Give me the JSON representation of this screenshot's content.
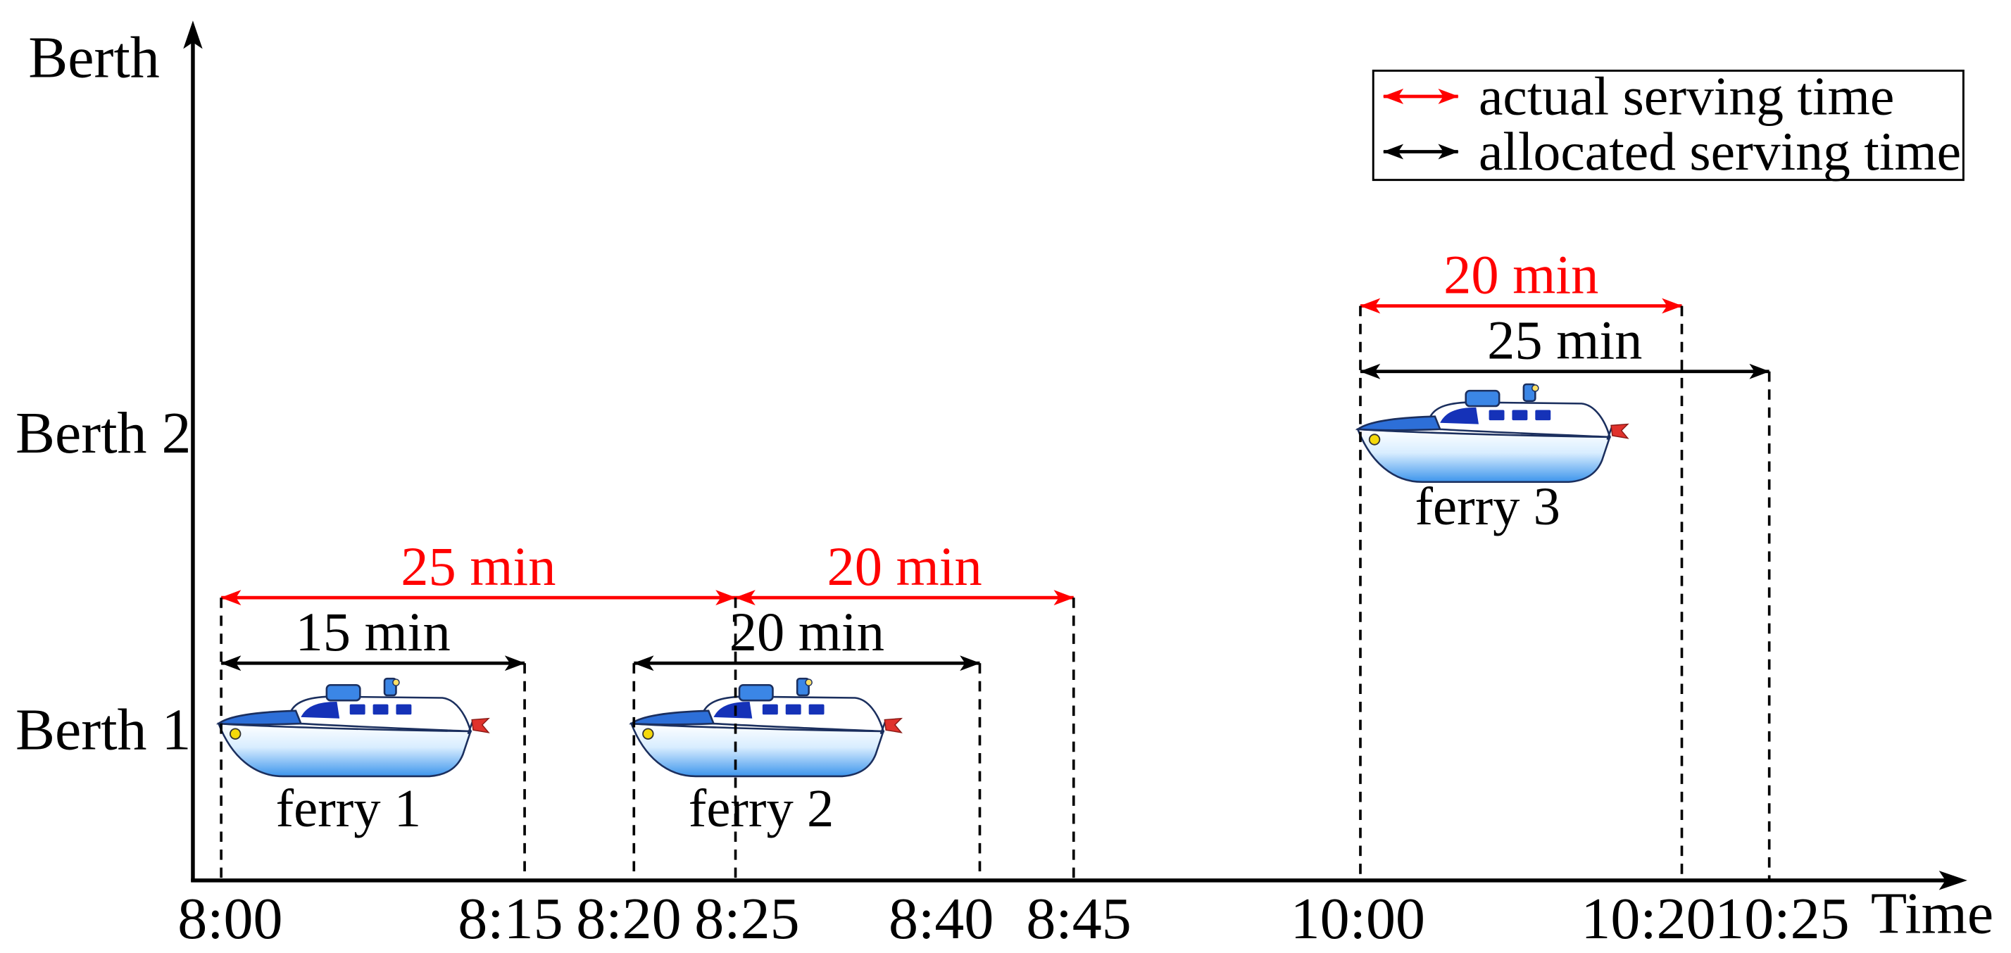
{
  "axes": {
    "y_label": "Berth",
    "x_label": "Time",
    "berths": [
      "Berth 1",
      "Berth 2"
    ],
    "time_ticks": [
      "8:00",
      "8:15",
      "8:20",
      "8:25",
      "8:40",
      "8:45",
      "10:00",
      "10:20",
      "10:25"
    ]
  },
  "legend": {
    "actual": {
      "label": "actual serving time",
      "color": "#ff0000",
      "icon": "double-arrow-icon"
    },
    "allocated": {
      "label": "allocated serving time",
      "color": "#000000",
      "icon": "double-arrow-icon"
    }
  },
  "ferries": [
    {
      "name": "ferry 1",
      "icon": "ferry-icon",
      "berth": "Berth 1",
      "actual": {
        "start": "8:00",
        "end": "8:25",
        "duration": "25 min"
      },
      "allocated": {
        "start": "8:00",
        "end": "8:15",
        "duration": "15 min"
      }
    },
    {
      "name": "ferry 2",
      "icon": "ferry-icon",
      "berth": "Berth 1",
      "actual": {
        "start": "8:25",
        "end": "8:45",
        "duration": "20 min"
      },
      "allocated": {
        "start": "8:20",
        "end": "8:40",
        "duration": "20 min"
      }
    },
    {
      "name": "ferry 3",
      "icon": "ferry-icon",
      "berth": "Berth 2",
      "actual": {
        "start": "10:00",
        "end": "10:20",
        "duration": "20 min"
      },
      "allocated": {
        "start": "10:00",
        "end": "10:25",
        "duration": "25 min"
      }
    }
  ]
}
